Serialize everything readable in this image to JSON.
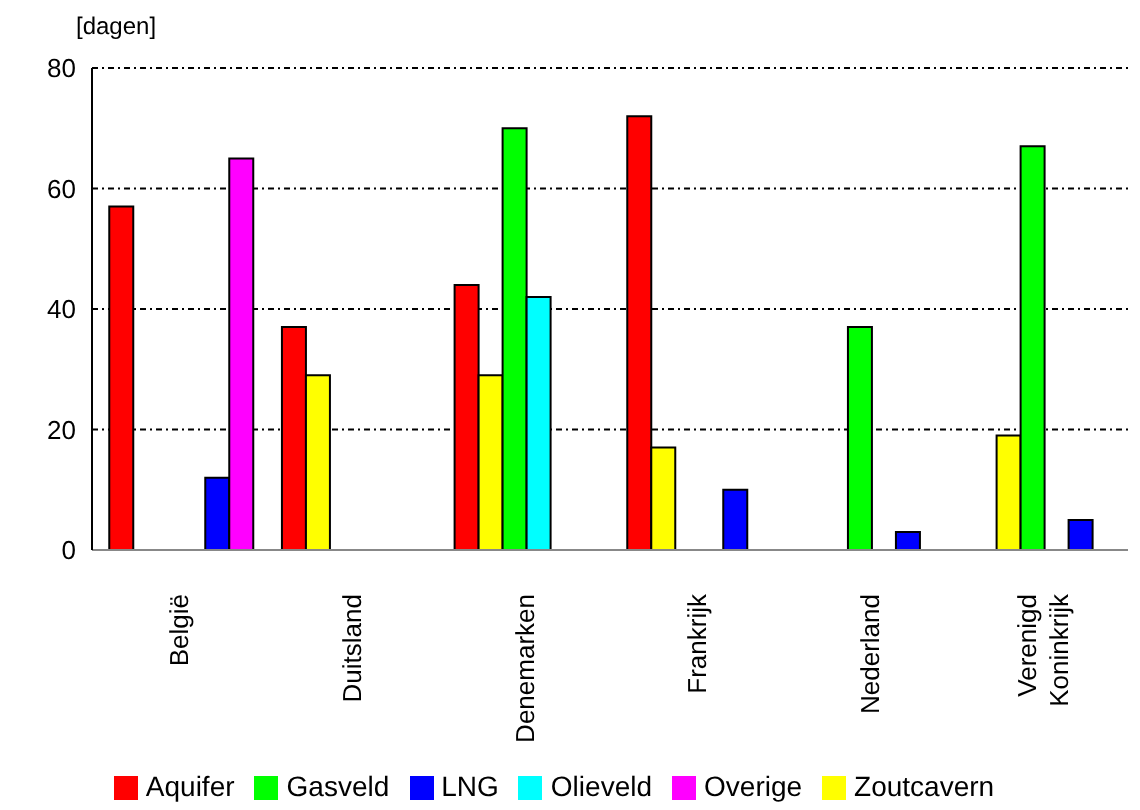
{
  "chart_data": {
    "type": "bar",
    "ylabel": "[dagen]",
    "categories": [
      "België",
      "Duitsland",
      "Denemarken",
      "Frankrijk",
      "Nederland",
      "Verenigd Koninkrijk"
    ],
    "series": [
      {
        "name": "Aquifer",
        "color": "#ff0000",
        "values": [
          57,
          37,
          44,
          72,
          null,
          null
        ]
      },
      {
        "name": "Zoutcavern",
        "color": "#ffff00",
        "values": [
          null,
          29,
          29,
          17,
          null,
          19
        ]
      },
      {
        "name": "Gasveld",
        "color": "#00ff00",
        "values": [
          null,
          null,
          70,
          null,
          37,
          67
        ]
      },
      {
        "name": "Olieveld",
        "color": "#00ffff",
        "values": [
          null,
          null,
          42,
          null,
          null,
          null
        ]
      },
      {
        "name": "LNG",
        "color": "#0000ff",
        "values": [
          12,
          null,
          null,
          10,
          3,
          5
        ]
      },
      {
        "name": "Overige",
        "color": "#ff00ff",
        "values": [
          65,
          null,
          null,
          null,
          null,
          null
        ]
      }
    ],
    "ylim": [
      0,
      80
    ],
    "yticks": [
      0,
      20,
      40,
      60,
      80
    ],
    "grid": "y",
    "legend": "bottom"
  }
}
